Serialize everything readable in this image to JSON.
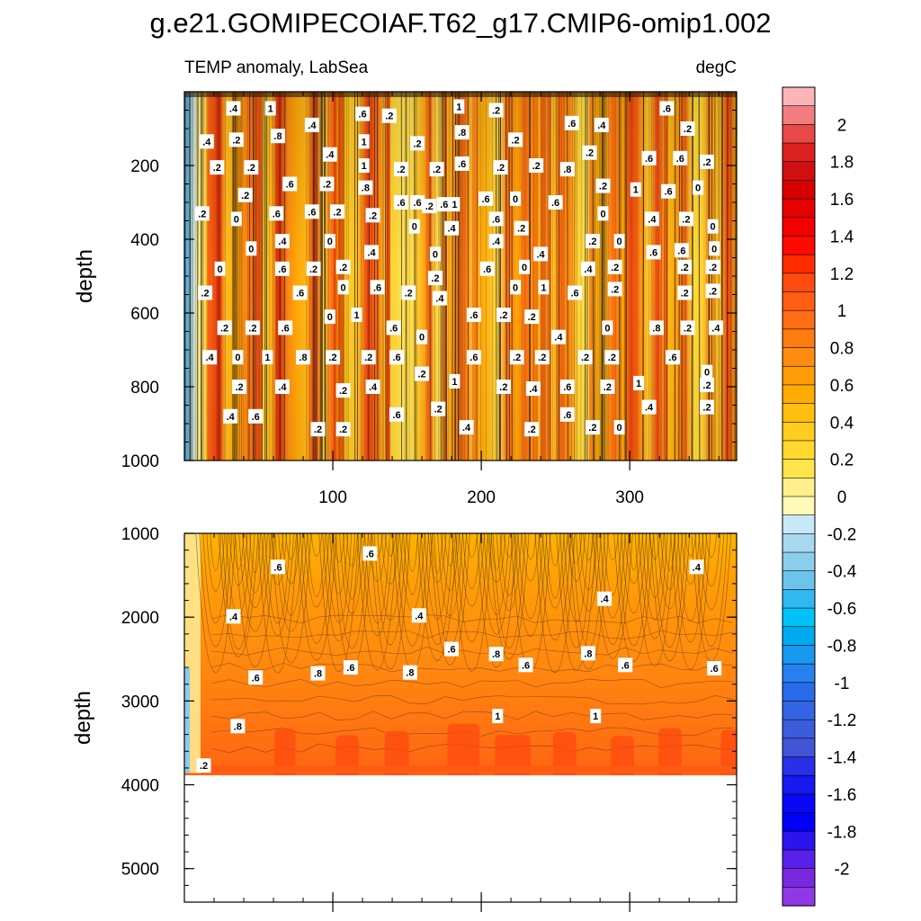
{
  "chart_data": {
    "type": "heatmap",
    "title": "g.e21.GOMIPECOIAF.T62_g17.CMIP6-omip1.002",
    "subtitle_left": "TEMP anomaly, LabSea",
    "subtitle_right": "degC",
    "x_range": [
      0,
      372
    ],
    "x_ticks": [
      100,
      200,
      300
    ],
    "x_tick_labels": [
      "100",
      "200",
      "300"
    ],
    "upper_panel": {
      "ylabel": "depth",
      "ylim": [
        0,
        1000
      ],
      "y_ticks": [
        200,
        400,
        600,
        800,
        1000
      ],
      "y_tick_labels": [
        "200",
        "400",
        "600",
        "800",
        "1000"
      ],
      "contour_labels": [
        {
          "x": 33,
          "y": 45,
          "text": ".4"
        },
        {
          "x": 58,
          "y": 45,
          "text": "1"
        },
        {
          "x": 120,
          "y": 60,
          "text": ".6"
        },
        {
          "x": 138,
          "y": 65,
          "text": ".2"
        },
        {
          "x": 185,
          "y": 40,
          "text": "1"
        },
        {
          "x": 210,
          "y": 50,
          "text": ".2"
        },
        {
          "x": 261,
          "y": 85,
          "text": ".6"
        },
        {
          "x": 281,
          "y": 90,
          "text": ".4"
        },
        {
          "x": 325,
          "y": 45,
          "text": ".6"
        },
        {
          "x": 339,
          "y": 100,
          "text": ".2"
        },
        {
          "x": 15,
          "y": 135,
          "text": ".4"
        },
        {
          "x": 35,
          "y": 130,
          "text": ".2"
        },
        {
          "x": 63,
          "y": 120,
          "text": ".8"
        },
        {
          "x": 86,
          "y": 90,
          "text": ".4"
        },
        {
          "x": 121,
          "y": 135,
          "text": "1"
        },
        {
          "x": 157,
          "y": 140,
          "text": ".2"
        },
        {
          "x": 187,
          "y": 110,
          "text": ".8"
        },
        {
          "x": 223,
          "y": 130,
          "text": ".2"
        },
        {
          "x": 273,
          "y": 165,
          "text": ".2"
        },
        {
          "x": 22,
          "y": 205,
          "text": ".2"
        },
        {
          "x": 45,
          "y": 205,
          "text": ".2"
        },
        {
          "x": 98,
          "y": 170,
          "text": ".4"
        },
        {
          "x": 121,
          "y": 200,
          "text": "1"
        },
        {
          "x": 146,
          "y": 210,
          "text": ".2"
        },
        {
          "x": 170,
          "y": 210,
          "text": ".2"
        },
        {
          "x": 187,
          "y": 195,
          "text": ".6"
        },
        {
          "x": 213,
          "y": 205,
          "text": ".2"
        },
        {
          "x": 237,
          "y": 200,
          "text": ".2"
        },
        {
          "x": 258,
          "y": 210,
          "text": ".8"
        },
        {
          "x": 313,
          "y": 180,
          "text": ".6"
        },
        {
          "x": 334,
          "y": 180,
          "text": ".6"
        },
        {
          "x": 352,
          "y": 190,
          "text": ".2"
        },
        {
          "x": 41,
          "y": 280,
          "text": ".2"
        },
        {
          "x": 71,
          "y": 250,
          "text": ".6"
        },
        {
          "x": 96,
          "y": 250,
          "text": ".2"
        },
        {
          "x": 122,
          "y": 260,
          "text": ".8"
        },
        {
          "x": 146,
          "y": 300,
          "text": ".6"
        },
        {
          "x": 165,
          "y": 310,
          "text": ".2"
        },
        {
          "x": 182,
          "y": 305,
          "text": "1"
        },
        {
          "x": 203,
          "y": 290,
          "text": ".6"
        },
        {
          "x": 223,
          "y": 290,
          "text": "0"
        },
        {
          "x": 250,
          "y": 300,
          "text": ".6"
        },
        {
          "x": 282,
          "y": 255,
          "text": ".2"
        },
        {
          "x": 304,
          "y": 265,
          "text": "1"
        },
        {
          "x": 326,
          "y": 270,
          "text": ".6"
        },
        {
          "x": 346,
          "y": 260,
          "text": "0"
        },
        {
          "x": 12,
          "y": 330,
          "text": ".2"
        },
        {
          "x": 35,
          "y": 345,
          "text": "0"
        },
        {
          "x": 62,
          "y": 330,
          "text": ".6"
        },
        {
          "x": 86,
          "y": 325,
          "text": ".6"
        },
        {
          "x": 103,
          "y": 325,
          "text": ".2"
        },
        {
          "x": 127,
          "y": 335,
          "text": ".2"
        },
        {
          "x": 157,
          "y": 300,
          "text": ".6"
        },
        {
          "x": 175,
          "y": 305,
          "text": ".6"
        },
        {
          "x": 155,
          "y": 365,
          "text": "0"
        },
        {
          "x": 180,
          "y": 370,
          "text": ".4"
        },
        {
          "x": 210,
          "y": 345,
          "text": ".6"
        },
        {
          "x": 227,
          "y": 370,
          "text": ".2"
        },
        {
          "x": 282,
          "y": 330,
          "text": "0"
        },
        {
          "x": 315,
          "y": 345,
          "text": ".4"
        },
        {
          "x": 338,
          "y": 345,
          "text": ".2"
        },
        {
          "x": 356,
          "y": 365,
          "text": "0"
        },
        {
          "x": 45,
          "y": 425,
          "text": "0"
        },
        {
          "x": 66,
          "y": 405,
          "text": ".4"
        },
        {
          "x": 98,
          "y": 405,
          "text": "0"
        },
        {
          "x": 126,
          "y": 435,
          "text": ".4"
        },
        {
          "x": 169,
          "y": 440,
          "text": "0"
        },
        {
          "x": 210,
          "y": 405,
          "text": ".4"
        },
        {
          "x": 240,
          "y": 440,
          "text": ".4"
        },
        {
          "x": 275,
          "y": 405,
          "text": ".2"
        },
        {
          "x": 293,
          "y": 405,
          "text": "0"
        },
        {
          "x": 316,
          "y": 435,
          "text": ".6"
        },
        {
          "x": 335,
          "y": 430,
          "text": ".6"
        },
        {
          "x": 357,
          "y": 425,
          "text": "0"
        },
        {
          "x": 24,
          "y": 480,
          "text": "0"
        },
        {
          "x": 66,
          "y": 480,
          "text": ".6"
        },
        {
          "x": 87,
          "y": 480,
          "text": ".2"
        },
        {
          "x": 107,
          "y": 475,
          "text": ".2"
        },
        {
          "x": 169,
          "y": 505,
          "text": ".2"
        },
        {
          "x": 204,
          "y": 480,
          "text": ".6"
        },
        {
          "x": 229,
          "y": 475,
          "text": "0"
        },
        {
          "x": 272,
          "y": 480,
          "text": ".4"
        },
        {
          "x": 290,
          "y": 475,
          "text": ".2"
        },
        {
          "x": 337,
          "y": 475,
          "text": ".2"
        },
        {
          "x": 356,
          "y": 475,
          "text": ".2"
        },
        {
          "x": 14,
          "y": 545,
          "text": ".2"
        },
        {
          "x": 78,
          "y": 545,
          "text": ".6"
        },
        {
          "x": 107,
          "y": 530,
          "text": "0"
        },
        {
          "x": 130,
          "y": 530,
          "text": ".6"
        },
        {
          "x": 151,
          "y": 545,
          "text": ".2"
        },
        {
          "x": 172,
          "y": 560,
          "text": ".4"
        },
        {
          "x": 223,
          "y": 530,
          "text": "0"
        },
        {
          "x": 242,
          "y": 530,
          "text": "1"
        },
        {
          "x": 263,
          "y": 545,
          "text": ".6"
        },
        {
          "x": 290,
          "y": 535,
          "text": ".2"
        },
        {
          "x": 337,
          "y": 545,
          "text": ".2"
        },
        {
          "x": 356,
          "y": 540,
          "text": ".2"
        },
        {
          "x": 27,
          "y": 640,
          "text": ".2"
        },
        {
          "x": 46,
          "y": 640,
          "text": ".2"
        },
        {
          "x": 68,
          "y": 640,
          "text": ".6"
        },
        {
          "x": 98,
          "y": 610,
          "text": "0"
        },
        {
          "x": 116,
          "y": 605,
          "text": "1"
        },
        {
          "x": 141,
          "y": 640,
          "text": ".6"
        },
        {
          "x": 160,
          "y": 665,
          "text": "0"
        },
        {
          "x": 195,
          "y": 605,
          "text": ".6"
        },
        {
          "x": 215,
          "y": 605,
          "text": ".2"
        },
        {
          "x": 234,
          "y": 610,
          "text": ".2"
        },
        {
          "x": 252,
          "y": 665,
          "text": ".4"
        },
        {
          "x": 285,
          "y": 640,
          "text": "0"
        },
        {
          "x": 318,
          "y": 640,
          "text": ".8"
        },
        {
          "x": 339,
          "y": 640,
          "text": ".2"
        },
        {
          "x": 358,
          "y": 640,
          "text": ".4"
        },
        {
          "x": 17,
          "y": 720,
          "text": ".4"
        },
        {
          "x": 36,
          "y": 720,
          "text": "0"
        },
        {
          "x": 56,
          "y": 720,
          "text": "1"
        },
        {
          "x": 80,
          "y": 720,
          "text": ".8"
        },
        {
          "x": 100,
          "y": 720,
          "text": ".2"
        },
        {
          "x": 124,
          "y": 720,
          "text": ".2"
        },
        {
          "x": 143,
          "y": 720,
          "text": ".6"
        },
        {
          "x": 160,
          "y": 765,
          "text": ".2"
        },
        {
          "x": 195,
          "y": 720,
          "text": ".6"
        },
        {
          "x": 224,
          "y": 720,
          "text": ".2"
        },
        {
          "x": 241,
          "y": 720,
          "text": ".2"
        },
        {
          "x": 270,
          "y": 720,
          "text": ".2"
        },
        {
          "x": 288,
          "y": 720,
          "text": ".2"
        },
        {
          "x": 329,
          "y": 720,
          "text": ".6"
        },
        {
          "x": 352,
          "y": 760,
          "text": "0"
        },
        {
          "x": 37,
          "y": 800,
          "text": ".2"
        },
        {
          "x": 66,
          "y": 800,
          "text": ".4"
        },
        {
          "x": 107,
          "y": 810,
          "text": ".2"
        },
        {
          "x": 127,
          "y": 800,
          "text": ".4"
        },
        {
          "x": 182,
          "y": 785,
          "text": "1"
        },
        {
          "x": 215,
          "y": 800,
          "text": ".2"
        },
        {
          "x": 235,
          "y": 805,
          "text": ".4"
        },
        {
          "x": 258,
          "y": 800,
          "text": ".6"
        },
        {
          "x": 285,
          "y": 800,
          "text": ".2"
        },
        {
          "x": 306,
          "y": 790,
          "text": "1"
        },
        {
          "x": 352,
          "y": 795,
          "text": ".2"
        },
        {
          "x": 31,
          "y": 880,
          "text": ".4"
        },
        {
          "x": 48,
          "y": 880,
          "text": ".6"
        },
        {
          "x": 143,
          "y": 875,
          "text": ".6"
        },
        {
          "x": 171,
          "y": 860,
          "text": ".2"
        },
        {
          "x": 258,
          "y": 875,
          "text": ".6"
        },
        {
          "x": 313,
          "y": 855,
          "text": ".4"
        },
        {
          "x": 352,
          "y": 855,
          "text": ".2"
        },
        {
          "x": 90,
          "y": 915,
          "text": ".2"
        },
        {
          "x": 107,
          "y": 915,
          "text": ".2"
        },
        {
          "x": 190,
          "y": 910,
          "text": ".4"
        },
        {
          "x": 234,
          "y": 915,
          "text": ".2"
        },
        {
          "x": 275,
          "y": 910,
          "text": ".2"
        },
        {
          "x": 293,
          "y": 910,
          "text": "0"
        }
      ]
    },
    "lower_panel": {
      "ylabel": "depth",
      "ylim": [
        1000,
        5400
      ],
      "y_ticks": [
        1000,
        2000,
        3000,
        4000,
        5000
      ],
      "y_tick_labels": [
        "1000",
        "2000",
        "3000",
        "4000",
        "5000"
      ],
      "contour_labels": [
        {
          "x": 125,
          "y": 1240,
          "text": ".6"
        },
        {
          "x": 63,
          "y": 1400,
          "text": ".6"
        },
        {
          "x": 345,
          "y": 1400,
          "text": ".4"
        },
        {
          "x": 283,
          "y": 1780,
          "text": ".4"
        },
        {
          "x": 33,
          "y": 1990,
          "text": ".4"
        },
        {
          "x": 158,
          "y": 1980,
          "text": ".4"
        },
        {
          "x": 180,
          "y": 2380,
          "text": ".6"
        },
        {
          "x": 210,
          "y": 2440,
          "text": ".8"
        },
        {
          "x": 272,
          "y": 2430,
          "text": ".8"
        },
        {
          "x": 230,
          "y": 2570,
          "text": ".6"
        },
        {
          "x": 297,
          "y": 2570,
          "text": ".6"
        },
        {
          "x": 112,
          "y": 2600,
          "text": ".6"
        },
        {
          "x": 90,
          "y": 2670,
          "text": ".8"
        },
        {
          "x": 152,
          "y": 2660,
          "text": ".8"
        },
        {
          "x": 48,
          "y": 2720,
          "text": ".6"
        },
        {
          "x": 357,
          "y": 2610,
          "text": ".6"
        },
        {
          "x": 211,
          "y": 3180,
          "text": "1"
        },
        {
          "x": 277,
          "y": 3180,
          "text": "1"
        },
        {
          "x": 36,
          "y": 3300,
          "text": ".8"
        },
        {
          "x": 13,
          "y": 3770,
          "text": ".2"
        }
      ],
      "data_floor_depth": 3860
    },
    "colorbar": {
      "levels": [
        2.2,
        2.1,
        2,
        1.9,
        1.8,
        1.7,
        1.6,
        1.5,
        1.4,
        1.3,
        1.2,
        1.1,
        1,
        0.9,
        0.8,
        0.7,
        0.6,
        0.5,
        0.4,
        0.3,
        0.2,
        0.1,
        0,
        -0.1,
        -0.2,
        -0.3,
        -0.4,
        -0.5,
        -0.6,
        -0.7,
        -0.8,
        -0.9,
        -1,
        -1.1,
        -1.2,
        -1.3,
        -1.4,
        -1.5,
        -1.6,
        -1.7,
        -1.8,
        -1.9,
        -2,
        -2.1
      ],
      "colors": [
        "#fcb4b8",
        "#f27c80",
        "#e84848",
        "#dc2020",
        "#d01010",
        "#d80000",
        "#e60000",
        "#f30000",
        "#ff0a00",
        "#ff2c00",
        "#ff4a10",
        "#ff5e12",
        "#ff6e12",
        "#ff7c10",
        "#ff8c10",
        "#ff9c08",
        "#ffac00",
        "#ffbe10",
        "#ffcc20",
        "#ffd830",
        "#ffe44c",
        "#fff08c",
        "#fffab8",
        "#c8e8f8",
        "#a8d8f0",
        "#8ccced",
        "#6cc4ec",
        "#30b8f0",
        "#00c2f8",
        "#00aaf0",
        "#1898f0",
        "#2880ee",
        "#286aea",
        "#3464e4",
        "#3c5cde",
        "#4454d8",
        "#2830e8",
        "#1818f0",
        "#0808f4",
        "#0000f8",
        "#2c14f0",
        "#5820e8",
        "#7a28e0",
        "#9038e8"
      ],
      "tick_labels": [
        "2",
        "1.8",
        "1.6",
        "1.4",
        "1.2",
        "1",
        "0.8",
        "0.6",
        "0.4",
        "0.2",
        "0",
        "-0.2",
        "-0.4",
        "-0.6",
        "-0.8",
        "-1",
        "-1.2",
        "-1.4",
        "-1.6",
        "-1.8",
        "-2"
      ],
      "tick_values": [
        2,
        1.8,
        1.6,
        1.4,
        1.2,
        1,
        0.8,
        0.6,
        0.4,
        0.2,
        0,
        -0.2,
        -0.4,
        -0.6,
        -0.8,
        -1,
        -1.2,
        -1.4,
        -1.6,
        -1.8,
        -2
      ]
    }
  }
}
